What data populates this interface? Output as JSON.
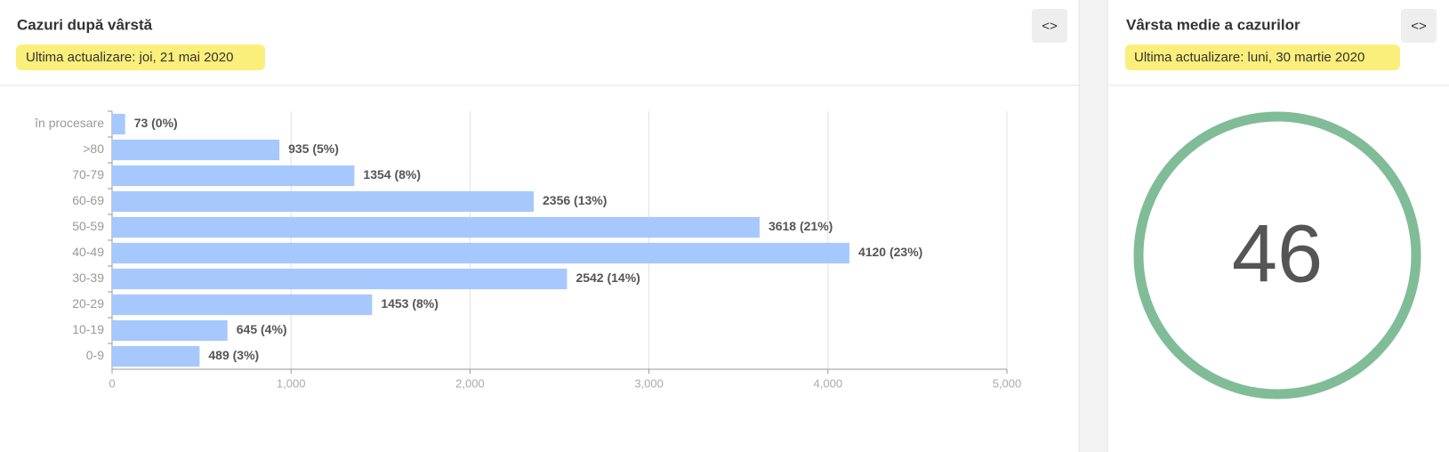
{
  "panels": [
    {
      "title": "Cazuri după vârstă",
      "updated": "Ultima actualizare: joi, 21 mai 2020",
      "toggle": "<>"
    },
    {
      "title": "Vârsta medie a cazurilor",
      "updated": "Ultima actualizare: luni, 30 martie 2020",
      "toggle": "<>",
      "value": 46
    }
  ],
  "chart_data": {
    "type": "hbar",
    "categories": [
      "în procesare",
      ">80",
      "70-79",
      "60-69",
      "50-59",
      "40-49",
      "30-39",
      "20-29",
      "10-19",
      "0-9"
    ],
    "values": [
      73,
      935,
      1354,
      2356,
      3618,
      4120,
      2542,
      1453,
      645,
      489
    ],
    "value_labels": [
      "73 (0%)",
      "935 (5%)",
      "1354 (8%)",
      "2356 (13%)",
      "3618 (21%)",
      "4120 (23%)",
      "2542 (14%)",
      "1453 (8%)",
      "645 (4%)",
      "489 (3%)"
    ],
    "color": "#a6c8fd",
    "xlim": [
      0,
      5000
    ],
    "xticks": [
      0,
      {
        "value": 1000,
        "label": "1,000"
      },
      {
        "value": 2000,
        "label": "2,000"
      },
      {
        "value": 3000,
        "label": "3,000"
      },
      {
        "value": 4000,
        "label": "4,000"
      },
      {
        "value": 5000,
        "label": "5,000"
      }
    ],
    "grid": true
  }
}
